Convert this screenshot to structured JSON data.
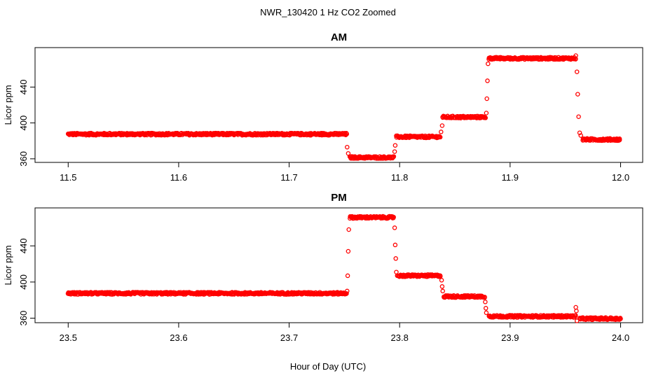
{
  "figure": {
    "suptitle": "NWR_130420  1 Hz CO2 Zoomed",
    "xlabel": "Hour of Day (UTC)"
  },
  "colors": {
    "points": "#ff0000",
    "axis": "#000000"
  },
  "chart_data": [
    {
      "type": "scatter",
      "title": "AM",
      "ylabel": "Licor ppm",
      "xlim": [
        11.47,
        12.02
      ],
      "ylim": [
        356,
        484
      ],
      "xticks": [
        11.5,
        11.6,
        11.7,
        11.8,
        11.9,
        12.0
      ],
      "xtick_labels": [
        "11.5",
        "11.6",
        "11.7",
        "11.8",
        "11.9",
        "12.0"
      ],
      "yticks": [
        360,
        400,
        440
      ],
      "ytick_labels": [
        "360",
        "400",
        "440"
      ],
      "grid": false,
      "marker": "open-circle",
      "plateaus": [
        {
          "x_start": 11.5,
          "x_end": 11.752,
          "y": 387.5
        },
        {
          "x_start": 11.755,
          "x_end": 11.795,
          "y": 361.5
        },
        {
          "x_start": 11.797,
          "x_end": 11.837,
          "y": 384.5
        },
        {
          "x_start": 11.839,
          "x_end": 11.878,
          "y": 406.5
        },
        {
          "x_start": 11.881,
          "x_end": 11.96,
          "y": 472.0
        },
        {
          "x_start": 11.966,
          "x_end": 12.0,
          "y": 381.5
        }
      ],
      "transition_points": [
        [
          11.7525,
          373
        ],
        [
          11.7535,
          366
        ],
        [
          11.7955,
          368
        ],
        [
          11.796,
          375
        ],
        [
          11.8375,
          390
        ],
        [
          11.8385,
          397
        ],
        [
          11.8785,
          411
        ],
        [
          11.879,
          427
        ],
        [
          11.8795,
          447
        ],
        [
          11.88,
          466
        ],
        [
          11.9605,
          457
        ],
        [
          11.9612,
          432
        ],
        [
          11.962,
          407
        ],
        [
          11.963,
          389
        ],
        [
          11.964,
          386
        ],
        [
          11.9595,
          475
        ]
      ]
    },
    {
      "type": "scatter",
      "title": "PM",
      "ylabel": "Licor ppm",
      "xlim": [
        23.47,
        24.02
      ],
      "ylim": [
        355,
        482
      ],
      "xticks": [
        23.5,
        23.6,
        23.7,
        23.8,
        23.9,
        24.0
      ],
      "xtick_labels": [
        "23.5",
        "23.6",
        "23.7",
        "23.8",
        "23.9",
        "24.0"
      ],
      "yticks": [
        360,
        400,
        440
      ],
      "ytick_labels": [
        "360",
        "400",
        "440"
      ],
      "grid": false,
      "marker": "open-circle",
      "plateaus": [
        {
          "x_start": 23.5,
          "x_end": 23.752,
          "y": 387.5
        },
        {
          "x_start": 23.755,
          "x_end": 23.795,
          "y": 471.5
        },
        {
          "x_start": 23.798,
          "x_end": 23.837,
          "y": 407.0
        },
        {
          "x_start": 23.84,
          "x_end": 23.877,
          "y": 384.0
        },
        {
          "x_start": 23.881,
          "x_end": 23.96,
          "y": 362.0
        },
        {
          "x_start": 23.963,
          "x_end": 24.0,
          "y": 359.5
        }
      ],
      "transition_points": [
        [
          23.7525,
          390
        ],
        [
          23.753,
          407
        ],
        [
          23.7535,
          434
        ],
        [
          23.754,
          458
        ],
        [
          23.7955,
          460
        ],
        [
          23.796,
          441
        ],
        [
          23.7965,
          426
        ],
        [
          23.797,
          411
        ],
        [
          23.838,
          402
        ],
        [
          23.8385,
          395
        ],
        [
          23.839,
          390
        ],
        [
          23.8775,
          378
        ],
        [
          23.878,
          371
        ],
        [
          23.8785,
          366
        ],
        [
          23.9595,
          372
        ],
        [
          23.96,
          368
        ],
        [
          23.9605,
          357
        ]
      ]
    }
  ]
}
